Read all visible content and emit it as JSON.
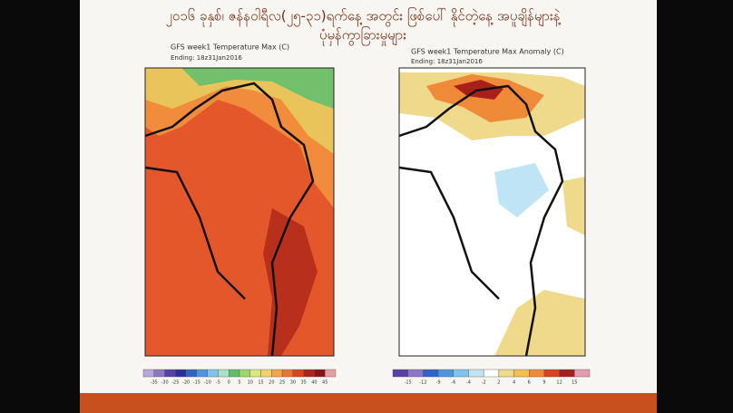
{
  "slide": {
    "title_lines": [
      "၂၀၁၆ ခုနှစ်၊ ဇန်နဝါရီလ(၂၅-၃၁)ရက်နေ့ အတွင်း ဖြစ်ပေါ် နိုင်တဲ့နေ့ အပူချိန်များနဲ့",
      "ပုံမှန်ကွာခြားမှုများ"
    ]
  },
  "maps": [
    {
      "title": "GFS week1 Temperature Max (C)",
      "subtitle": "Ending: 18z31Jan2016",
      "colorbar": {
        "labels": [
          -35,
          -30,
          -25,
          -20,
          -15,
          -10,
          -5,
          0,
          5,
          10,
          15,
          20,
          25,
          30,
          35,
          40,
          45
        ],
        "colors": [
          "#b9a7d9",
          "#8d77c5",
          "#5b3fa8",
          "#2b2f9a",
          "#2f63c6",
          "#4e97df",
          "#7fc4ef",
          "#a9e0c8",
          "#5fbf6b",
          "#9fd66a",
          "#dbe87a",
          "#f3d36b",
          "#f1a648",
          "#ea7432",
          "#d9431f",
          "#b52318",
          "#8a1414",
          "#e7a0a0"
        ]
      }
    },
    {
      "title": "GFS week1 Temperature Max Anomaly (C)",
      "subtitle": "Ending: 18z31Jan2016",
      "colorbar": {
        "labels": [
          -15,
          -12,
          -9,
          -6,
          -4,
          -2,
          2,
          4,
          6,
          9,
          12,
          15
        ],
        "colors": [
          "#5b3fa8",
          "#8d77c5",
          "#2f63c6",
          "#4e97df",
          "#7fc4ef",
          "#bfe4f5",
          "#ffffff",
          "#efd98a",
          "#f3c04e",
          "#ef8a38",
          "#d9431f",
          "#a8201a",
          "#e79bb0"
        ]
      }
    }
  ]
}
